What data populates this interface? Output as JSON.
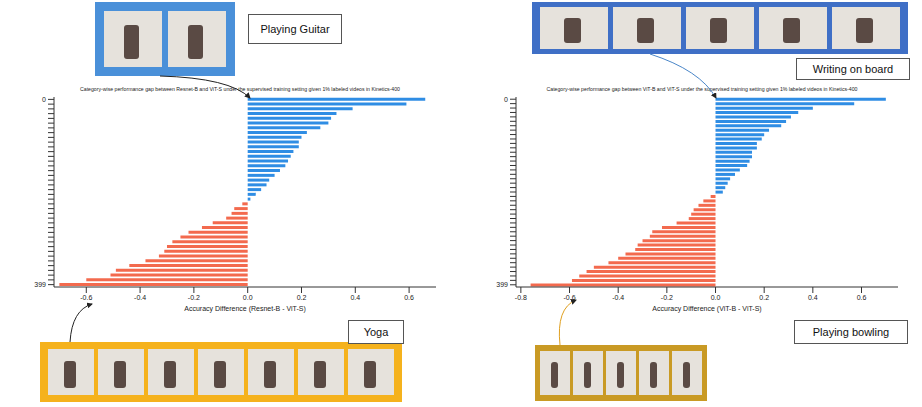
{
  "chart_data": [
    {
      "type": "bar",
      "orientation": "horizontal",
      "title": "Category-wise performance gap between Resnet-B and ViT-S under the supervised training setting given 1% labeled videos in Kinetics-400",
      "x_label": "Accuracy Difference (Resnet-B - ViT-S)",
      "annotations": [
        "Playing Guitar",
        "Yoga"
      ],
      "categories": [
        "0",
        null,
        null,
        null,
        null,
        null,
        null,
        null,
        null,
        null,
        null,
        null,
        null,
        null,
        null,
        null,
        null,
        null,
        null,
        null,
        null,
        null,
        null,
        null,
        null,
        null,
        null,
        null,
        null,
        null,
        null,
        null,
        null,
        null,
        null,
        null,
        null,
        null,
        null,
        "399"
      ],
      "values": [
        0.66,
        0.59,
        0.39,
        0.33,
        0.31,
        0.3,
        0.27,
        0.22,
        0.2,
        0.19,
        0.19,
        0.17,
        0.16,
        0.15,
        0.14,
        0.12,
        0.1,
        0.08,
        0.07,
        0.05,
        0.03,
        0.01,
        -0.02,
        -0.05,
        -0.06,
        -0.08,
        -0.13,
        -0.17,
        -0.22,
        -0.25,
        -0.28,
        -0.3,
        -0.31,
        -0.33,
        -0.38,
        -0.44,
        -0.49,
        -0.51,
        -0.6,
        -0.7
      ],
      "colors": [
        "#2f8de4",
        "#2f8de4",
        "#2f8de4",
        "#2f8de4",
        "#2f8de4",
        "#2f8de4",
        "#2f8de4",
        "#2f8de4",
        "#2f8de4",
        "#2f8de4",
        "#2f8de4",
        "#2f8de4",
        "#2f8de4",
        "#2f8de4",
        "#2f8de4",
        "#2f8de4",
        "#2f8de4",
        "#2f8de4",
        "#2f8de4",
        "#2f8de4",
        "#2f8de4",
        "#2f8de4",
        "#f36a4e",
        "#f36a4e",
        "#f36a4e",
        "#f36a4e",
        "#f36a4e",
        "#f36a4e",
        "#f36a4e",
        "#f36a4e",
        "#f36a4e",
        "#f36a4e",
        "#f36a4e",
        "#f36a4e",
        "#f36a4e",
        "#f36a4e",
        "#f36a4e",
        "#f36a4e",
        "#f36a4e",
        "#f36a4e"
      ],
      "xlim": [
        -0.72,
        0.7
      ],
      "xticks": [
        -0.6,
        -0.4,
        -0.2,
        {
          "value": 0,
          "label": "0.0"
        },
        0.2,
        0.4,
        0.6
      ]
    },
    {
      "type": "bar",
      "orientation": "horizontal",
      "title": "Category-wise performance gap between ViT-B and ViT-S under the supervised training setting given 1% labeled videos in Kinetics-400",
      "x_label": "Accuracy Difference (ViT-B - ViT-S)",
      "annotations": [
        "Writing on board",
        "Playing bowling"
      ],
      "categories": [
        "0",
        null,
        null,
        null,
        null,
        null,
        null,
        null,
        null,
        null,
        null,
        null,
        null,
        null,
        null,
        null,
        null,
        null,
        null,
        null,
        null,
        null,
        null,
        null,
        null,
        null,
        null,
        null,
        null,
        null,
        null,
        null,
        null,
        null,
        null,
        null,
        null,
        null,
        null,
        null,
        null,
        null,
        "399"
      ],
      "values": [
        0.7,
        0.57,
        0.4,
        0.34,
        0.31,
        0.29,
        0.27,
        0.22,
        0.2,
        0.19,
        0.17,
        0.17,
        0.15,
        0.15,
        0.14,
        0.13,
        0.1,
        0.08,
        0.06,
        0.05,
        0.04,
        0.03,
        -0.02,
        -0.05,
        -0.07,
        -0.09,
        -0.1,
        -0.11,
        -0.16,
        -0.22,
        -0.26,
        -0.27,
        -0.3,
        -0.32,
        -0.33,
        -0.37,
        -0.4,
        -0.44,
        -0.5,
        -0.53,
        -0.56,
        -0.59,
        -0.76
      ],
      "colors": [
        "#2f8de4",
        "#2f8de4",
        "#2f8de4",
        "#2f8de4",
        "#2f8de4",
        "#2f8de4",
        "#2f8de4",
        "#2f8de4",
        "#2f8de4",
        "#2f8de4",
        "#2f8de4",
        "#2f8de4",
        "#2f8de4",
        "#2f8de4",
        "#2f8de4",
        "#2f8de4",
        "#2f8de4",
        "#2f8de4",
        "#2f8de4",
        "#2f8de4",
        "#2f8de4",
        "#2f8de4",
        "#f36a4e",
        "#f36a4e",
        "#f36a4e",
        "#f36a4e",
        "#f36a4e",
        "#f36a4e",
        "#f36a4e",
        "#f36a4e",
        "#f36a4e",
        "#f36a4e",
        "#f36a4e",
        "#f36a4e",
        "#f36a4e",
        "#f36a4e",
        "#f36a4e",
        "#f36a4e",
        "#f36a4e",
        "#f36a4e",
        "#f36a4e",
        "#f36a4e",
        "#f36a4e"
      ],
      "xlim": [
        -0.82,
        0.75
      ],
      "xticks": [
        -0.8,
        -0.6,
        -0.4,
        -0.2,
        {
          "value": 0,
          "label": "0.0"
        },
        0.2,
        0.4,
        0.6
      ]
    }
  ]
}
